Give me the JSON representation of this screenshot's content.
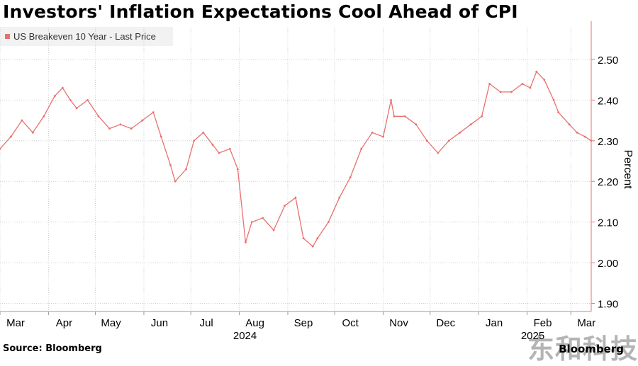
{
  "colors": {
    "series": "#e8716e",
    "grid": "#cfcfcf",
    "axis": "#e8716e",
    "background": "#ffffff"
  },
  "source_label": "Source: Bloomberg",
  "brand_label": "Bloomberg",
  "watermark_text": "东和科技",
  "chart_data": {
    "type": "line",
    "title": "Investors' Inflation Expectations Cool Ahead of CPI",
    "ylabel": "Percent",
    "ylim": [
      1.88,
      2.58
    ],
    "yticks": [
      1.9,
      2.0,
      2.1,
      2.2,
      2.3,
      2.4,
      2.5
    ],
    "ytick_labels": [
      "1.90",
      "2.00",
      "2.10",
      "2.20",
      "2.30",
      "2.40",
      "2.50"
    ],
    "x_range": [
      "2024-03-01",
      "2025-03-14"
    ],
    "xticks": [
      {
        "label": "Mar",
        "date": "2024-03-01"
      },
      {
        "label": "Apr",
        "date": "2024-04-01"
      },
      {
        "label": "May",
        "date": "2024-05-01"
      },
      {
        "label": "Jun",
        "date": "2024-06-01"
      },
      {
        "label": "Jul",
        "date": "2024-07-01"
      },
      {
        "label": "Aug",
        "date": "2024-08-01"
      },
      {
        "label": "Sep",
        "date": "2024-09-01"
      },
      {
        "label": "Oct",
        "date": "2024-10-01"
      },
      {
        "label": "Nov",
        "date": "2024-11-01"
      },
      {
        "label": "Dec",
        "date": "2024-12-01"
      },
      {
        "label": "Jan",
        "date": "2025-01-01"
      },
      {
        "label": "Feb",
        "date": "2025-02-01"
      },
      {
        "label": "Mar",
        "date": "2025-03-01"
      }
    ],
    "year_labels": [
      {
        "label": "2024",
        "date": "2024-08-01"
      },
      {
        "label": "2025",
        "date": "2025-02-01"
      }
    ],
    "grid": true,
    "legend": {
      "position": "top-left"
    },
    "series": [
      {
        "name": "US Breakeven 10 Year - Last Price",
        "x": [
          "2024-03-01",
          "2024-03-08",
          "2024-03-15",
          "2024-03-22",
          "2024-03-29",
          "2024-04-05",
          "2024-04-10",
          "2024-04-15",
          "2024-04-19",
          "2024-04-26",
          "2024-05-03",
          "2024-05-10",
          "2024-05-17",
          "2024-05-24",
          "2024-05-31",
          "2024-06-07",
          "2024-06-12",
          "2024-06-18",
          "2024-06-21",
          "2024-06-28",
          "2024-07-03",
          "2024-07-09",
          "2024-07-15",
          "2024-07-19",
          "2024-07-26",
          "2024-07-31",
          "2024-08-05",
          "2024-08-09",
          "2024-08-16",
          "2024-08-23",
          "2024-08-30",
          "2024-09-06",
          "2024-09-11",
          "2024-09-17",
          "2024-09-20",
          "2024-09-27",
          "2024-10-04",
          "2024-10-11",
          "2024-10-18",
          "2024-10-25",
          "2024-11-01",
          "2024-11-06",
          "2024-11-08",
          "2024-11-15",
          "2024-11-22",
          "2024-11-29",
          "2024-12-06",
          "2024-12-13",
          "2024-12-20",
          "2024-12-27",
          "2025-01-03",
          "2025-01-08",
          "2025-01-15",
          "2025-01-22",
          "2025-01-29",
          "2025-02-03",
          "2025-02-07",
          "2025-02-12",
          "2025-02-18",
          "2025-02-21",
          "2025-02-28",
          "2025-03-05",
          "2025-03-10",
          "2025-03-14"
        ],
        "values": [
          2.28,
          2.31,
          2.35,
          2.32,
          2.36,
          2.41,
          2.43,
          2.4,
          2.38,
          2.4,
          2.36,
          2.33,
          2.34,
          2.33,
          2.35,
          2.37,
          2.31,
          2.24,
          2.2,
          2.23,
          2.3,
          2.32,
          2.29,
          2.27,
          2.28,
          2.23,
          2.05,
          2.1,
          2.11,
          2.08,
          2.14,
          2.16,
          2.06,
          2.04,
          2.06,
          2.1,
          2.16,
          2.21,
          2.28,
          2.32,
          2.31,
          2.4,
          2.36,
          2.36,
          2.34,
          2.3,
          2.27,
          2.3,
          2.32,
          2.34,
          2.36,
          2.44,
          2.42,
          2.42,
          2.44,
          2.43,
          2.47,
          2.45,
          2.4,
          2.37,
          2.34,
          2.32,
          2.31,
          2.3
        ]
      }
    ]
  }
}
